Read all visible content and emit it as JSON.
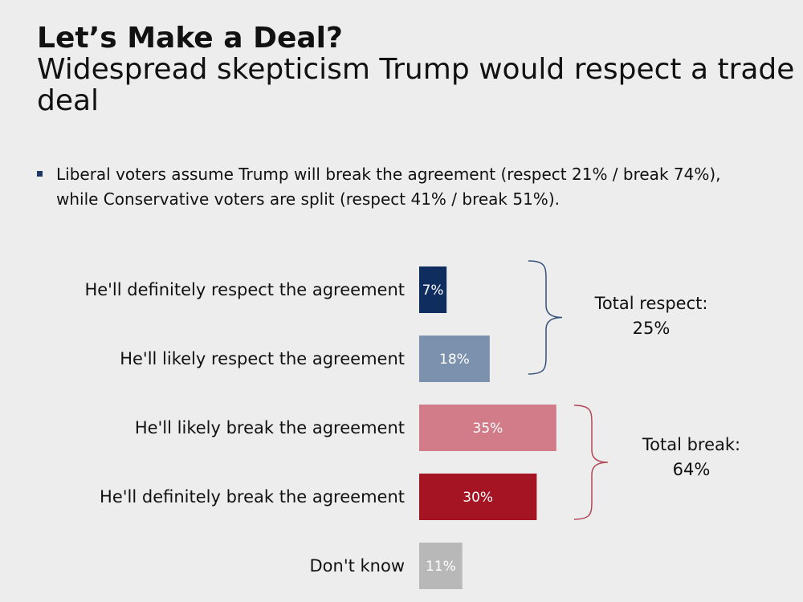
{
  "title": {
    "main": "Let’s Make a Deal?",
    "subtitle": "Widespread skepticism Trump would respect a trade deal"
  },
  "bullet": {
    "text": "Liberal voters assume Trump will break the agreement (respect 21% / break 74%), while Conservative voters are split (respect 41% / break 51%).",
    "marker_color": "#1f3864"
  },
  "chart_data": {
    "type": "bar",
    "orientation": "horizontal",
    "categories": [
      "He'll definitely respect the agreement",
      "He'll likely respect the agreement",
      "He'll likely break the agreement",
      "He'll definitely break the agreement",
      "Don't know"
    ],
    "values": [
      7,
      18,
      35,
      30,
      11
    ],
    "labels": [
      "7%",
      "18%",
      "35%",
      "30%",
      "11%"
    ],
    "colors": [
      "#0f2d5e",
      "#7b91ad",
      "#d27c8a",
      "#a51423",
      "#b8b8b8"
    ],
    "groups": [
      {
        "label": "Total respect:",
        "value": "25%",
        "members": [
          0,
          1
        ],
        "color": "#33517a"
      },
      {
        "label": "Total break:",
        "value": "64%",
        "members": [
          2,
          3
        ],
        "color": "#b0485a"
      }
    ],
    "xlim": [
      0,
      100
    ]
  }
}
